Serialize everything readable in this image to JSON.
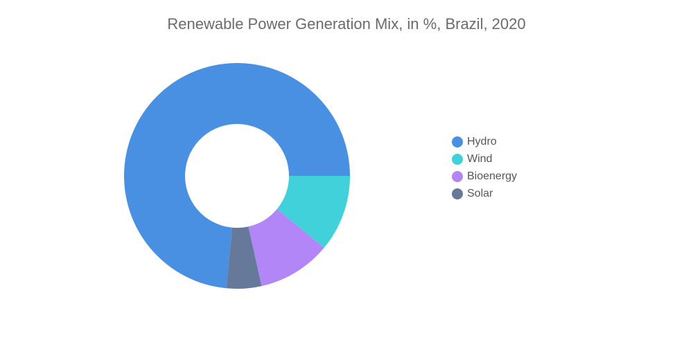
{
  "chart_data": {
    "type": "pie",
    "title": "Renewable Power Generation Mix, in %, Brazil, 2020",
    "legend_position": "right",
    "donut": true,
    "series": [
      {
        "name": "Hydro",
        "value": 73.5,
        "color": "#4a90e2"
      },
      {
        "name": "Wind",
        "value": 11.0,
        "color": "#41d1db"
      },
      {
        "name": "Bioenergy",
        "value": 10.5,
        "color": "#b286f7"
      },
      {
        "name": "Solar",
        "value": 5.0,
        "color": "#66799a"
      }
    ]
  }
}
